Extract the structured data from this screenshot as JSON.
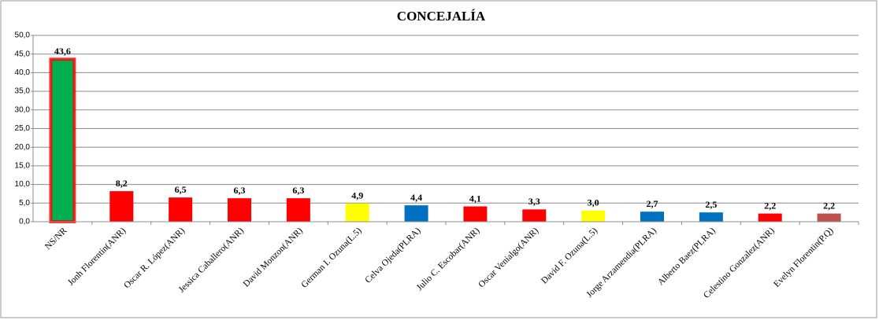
{
  "chart_data": {
    "type": "bar",
    "title": "CONCEJALÍA",
    "categories": [
      "NS/NR",
      "Jonh Florentin(ANR)",
      "Oscar R. López(ANR)",
      "Jessica Caballero(ANR)",
      "David Monzon(ANR)",
      "German I. Ozuna(L.5)",
      "Celva Ojeda(PLRA)",
      "Julio C. Escobar(ANR)",
      "Oscar Venialgo(ANR)",
      "David F. Ozuna(L.5)",
      "Jorge Arzamendia(PLRA)",
      "Alberto Baez(PLRA)",
      "Celestino Gonzalez(ANR)",
      "Evelyn Florentin(P.Q)"
    ],
    "values": [
      43.6,
      8.2,
      6.5,
      6.3,
      6.3,
      4.9,
      4.4,
      4.1,
      3.3,
      3.0,
      2.7,
      2.5,
      2.2,
      2.2
    ],
    "value_labels": [
      "43,6",
      "8,2",
      "6,5",
      "6,3",
      "6,3",
      "4,9",
      "4,4",
      "4,1",
      "3,3",
      "3,0",
      "2,7",
      "2,5",
      "2,2",
      "2,2"
    ],
    "colors": [
      "#00b050",
      "#ff0000",
      "#ff0000",
      "#ff0000",
      "#ff0000",
      "#ffff00",
      "#0070c0",
      "#ff0000",
      "#ff0000",
      "#ffff00",
      "#0070c0",
      "#0070c0",
      "#ff0000",
      "#c0504d"
    ],
    "ylim": [
      0,
      50
    ],
    "yticks": [
      {
        "value": 0,
        "label": "0,0"
      },
      {
        "value": 5,
        "label": "5,0"
      },
      {
        "value": 10,
        "label": "10,0"
      },
      {
        "value": 15,
        "label": "15,0"
      },
      {
        "value": 20,
        "label": "20,0"
      },
      {
        "value": 25,
        "label": "25,0"
      },
      {
        "value": 30,
        "label": "30,0"
      },
      {
        "value": 35,
        "label": "35,0"
      },
      {
        "value": 40,
        "label": "40,0"
      },
      {
        "value": 45,
        "label": "45,0"
      },
      {
        "value": 50,
        "label": "50,0"
      }
    ],
    "grid": true
  }
}
